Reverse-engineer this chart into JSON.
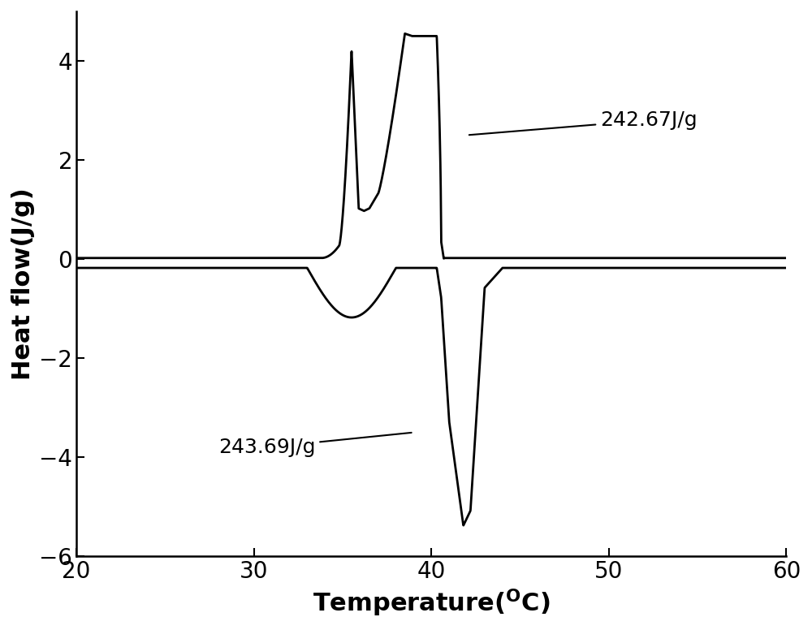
{
  "xlabel_main": "Temperature(",
  "xlabel_super": "O",
  "xlabel_end": "C)",
  "ylabel": "Heat flow(J/g)",
  "xlim": [
    20,
    60
  ],
  "ylim": [
    -6,
    5
  ],
  "xticks": [
    20,
    30,
    40,
    50,
    60
  ],
  "yticks": [
    -6,
    -4,
    -2,
    0,
    2,
    4
  ],
  "annotation_upper": "242.67J/g",
  "annotation_lower": "243.69J/g",
  "line_color": "#000000",
  "background_color": "#ffffff",
  "linewidth": 2.0,
  "axis_fontsize": 22,
  "tick_fontsize": 20,
  "annot_fontsize": 18
}
